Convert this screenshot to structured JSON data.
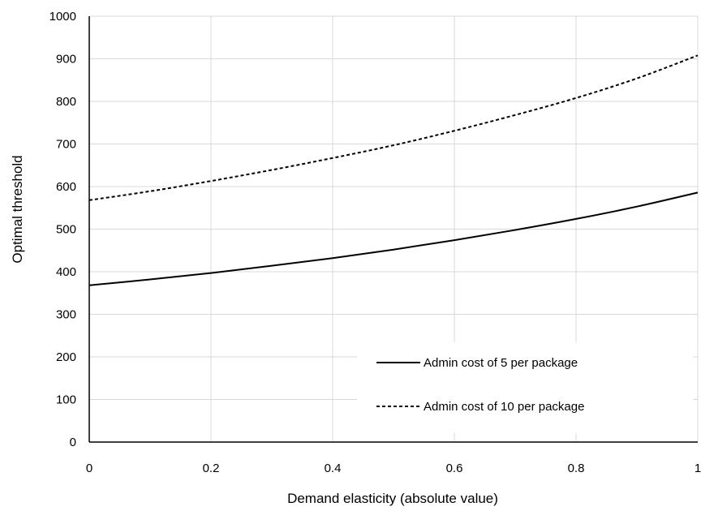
{
  "chart_data": {
    "type": "line",
    "title": "",
    "xlabel": "Demand elasticity (absolute value)",
    "ylabel": "Optimal threshold",
    "xlim": [
      0,
      1
    ],
    "ylim": [
      0,
      1000
    ],
    "xticks": [
      0,
      0.2,
      0.4,
      0.6,
      0.8,
      1
    ],
    "xtick_labels": [
      "0",
      "0.2",
      "0.4",
      "0.6",
      "0.8",
      "1"
    ],
    "yticks": [
      0,
      100,
      200,
      300,
      400,
      500,
      600,
      700,
      800,
      900,
      1000
    ],
    "ytick_labels": [
      "0",
      "100",
      "200",
      "300",
      "400",
      "500",
      "600",
      "700",
      "800",
      "900",
      "1000"
    ],
    "grid": true,
    "legend_position": "bottom-right",
    "x": [
      0,
      0.1,
      0.2,
      0.3,
      0.4,
      0.5,
      0.6,
      0.7,
      0.8,
      0.9,
      1.0
    ],
    "series": [
      {
        "name": "Admin cost of 5 per package",
        "line_style": "solid",
        "color": "#000000",
        "values": [
          368,
          382,
          397,
          414,
          432,
          452,
          474,
          498,
          524,
          553,
          586
        ]
      },
      {
        "name": "Admin cost of 10 per package",
        "line_style": "dashed",
        "color": "#000000",
        "values": [
          568,
          589,
          613,
          639,
          667,
          697,
          731,
          768,
          808,
          854,
          908
        ]
      }
    ]
  }
}
